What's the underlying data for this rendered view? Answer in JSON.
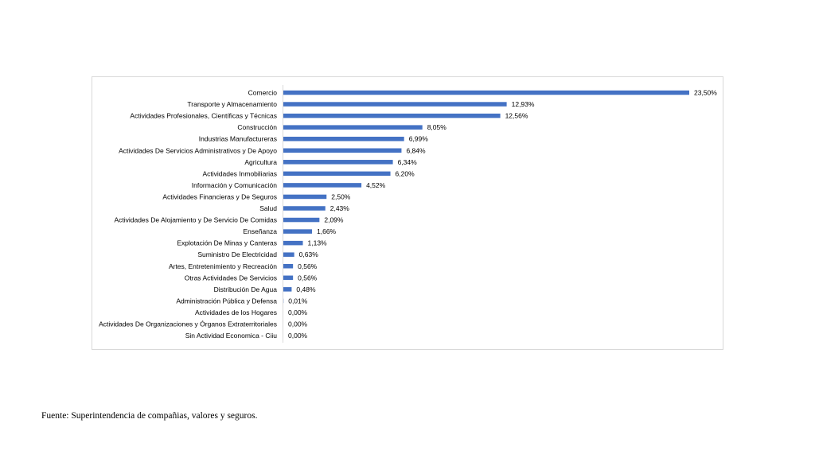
{
  "chart_data": {
    "type": "bar",
    "orientation": "horizontal",
    "categories": [
      "Comercio",
      "Transporte y Almacenamiento",
      "Actividades Profesionales, Científicas y Técnicas",
      "Construcción",
      "Industrias Manufactureras",
      "Actividades De Servicios Administrativos y De Apoyo",
      "Agricultura",
      "Actividades Inmobiliarias",
      "Información y Comunicación",
      "Actividades Financieras y De Seguros",
      "Salud",
      "Actividades De Alojamiento y De Servicio De Comidas",
      "Enseñanza",
      "Explotación De Minas y Canteras",
      "Suministro De Electricidad",
      "Artes, Entretenimiento y Recreación",
      "Otras Actividades De Servicios",
      "Distribución De Agua",
      "Administración Pública y Defensa",
      "Actividades de los Hogares",
      "Actividades De Organizaciones y Órganos Extraterritoriales",
      "Sin Actividad Economica - Ciiu"
    ],
    "values": [
      23.5,
      12.93,
      12.56,
      8.05,
      6.99,
      6.84,
      6.34,
      6.2,
      4.52,
      2.5,
      2.43,
      2.09,
      1.66,
      1.13,
      0.63,
      0.56,
      0.56,
      0.48,
      0.01,
      0.0,
      0.0,
      0.0
    ],
    "data_labels": [
      "23,50%",
      "12,93%",
      "12,56%",
      "8,05%",
      "6,99%",
      "6,84%",
      "6,34%",
      "6,20%",
      "4,52%",
      "2,50%",
      "2,43%",
      "2,09%",
      "1,66%",
      "1,13%",
      "0,63%",
      "0,56%",
      "0,56%",
      "0,48%",
      "0,01%",
      "0,00%",
      "0,00%",
      "0,00%"
    ],
    "unit": "%",
    "title": "",
    "xlabel": "",
    "ylabel": "",
    "grid": false,
    "legend": false,
    "bar_color": "#4472c4"
  },
  "footer": {
    "source": "Fuente: Superintendencia de compañias, valores y seguros."
  }
}
